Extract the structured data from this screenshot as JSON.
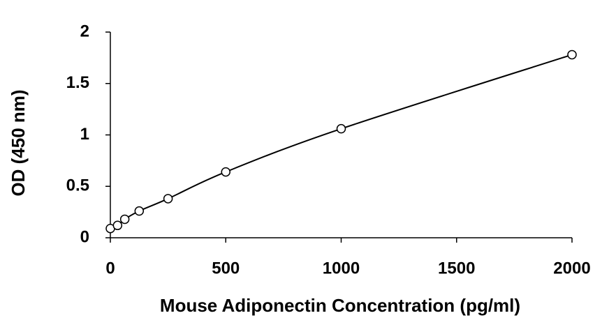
{
  "chart_data": {
    "type": "line",
    "x_label": "Mouse Adiponectin Concentration (pg/ml)",
    "y_label": "OD (450 nm)",
    "x": [
      0,
      31.25,
      62.5,
      125,
      250,
      500,
      1000,
      2000
    ],
    "series": [
      {
        "color": "#000000",
        "values": [
          0.09,
          0.12,
          0.18,
          0.26,
          0.38,
          0.64,
          1.06,
          1.78
        ]
      }
    ],
    "xlim": [
      0,
      2000
    ],
    "xticks": [
      0,
      500,
      1000,
      1500,
      2000
    ],
    "ylim": [
      0,
      2
    ],
    "yticks": [
      0,
      0.5,
      1,
      1.5,
      2
    ],
    "grid": false,
    "markers": "open-circle",
    "smooth": true
  }
}
